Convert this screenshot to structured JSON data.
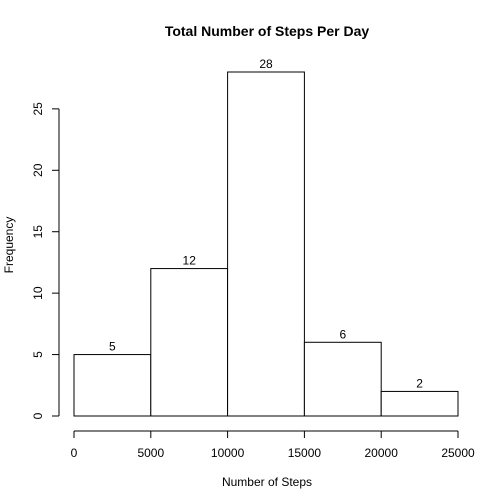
{
  "chart_data": {
    "type": "bar",
    "title": "Total Number of Steps Per Day",
    "xlabel": "Number of Steps",
    "ylabel": "Frequency",
    "bins": [
      {
        "from": 0,
        "to": 5000,
        "count": 5,
        "label": "5"
      },
      {
        "from": 5000,
        "to": 10000,
        "count": 12,
        "label": "12"
      },
      {
        "from": 10000,
        "to": 15000,
        "count": 28,
        "label": "28"
      },
      {
        "from": 15000,
        "to": 20000,
        "count": 6,
        "label": "6"
      },
      {
        "from": 20000,
        "to": 25000,
        "count": 2,
        "label": "2"
      }
    ],
    "xlim": [
      0,
      25000
    ],
    "ylim": [
      0,
      28
    ],
    "x_ticks": [
      {
        "value": 0,
        "label": "0"
      },
      {
        "value": 5000,
        "label": "5000"
      },
      {
        "value": 10000,
        "label": "10000"
      },
      {
        "value": 15000,
        "label": "15000"
      },
      {
        "value": 20000,
        "label": "20000"
      },
      {
        "value": 25000,
        "label": "25000"
      }
    ],
    "y_ticks": [
      {
        "value": 0,
        "label": "0"
      },
      {
        "value": 5,
        "label": "5"
      },
      {
        "value": 10,
        "label": "10"
      },
      {
        "value": 15,
        "label": "15"
      },
      {
        "value": 20,
        "label": "20"
      },
      {
        "value": 25,
        "label": "25"
      }
    ],
    "grid": false,
    "colors": {
      "bar_fill": "#ffffff",
      "bar_stroke": "#000000"
    }
  }
}
